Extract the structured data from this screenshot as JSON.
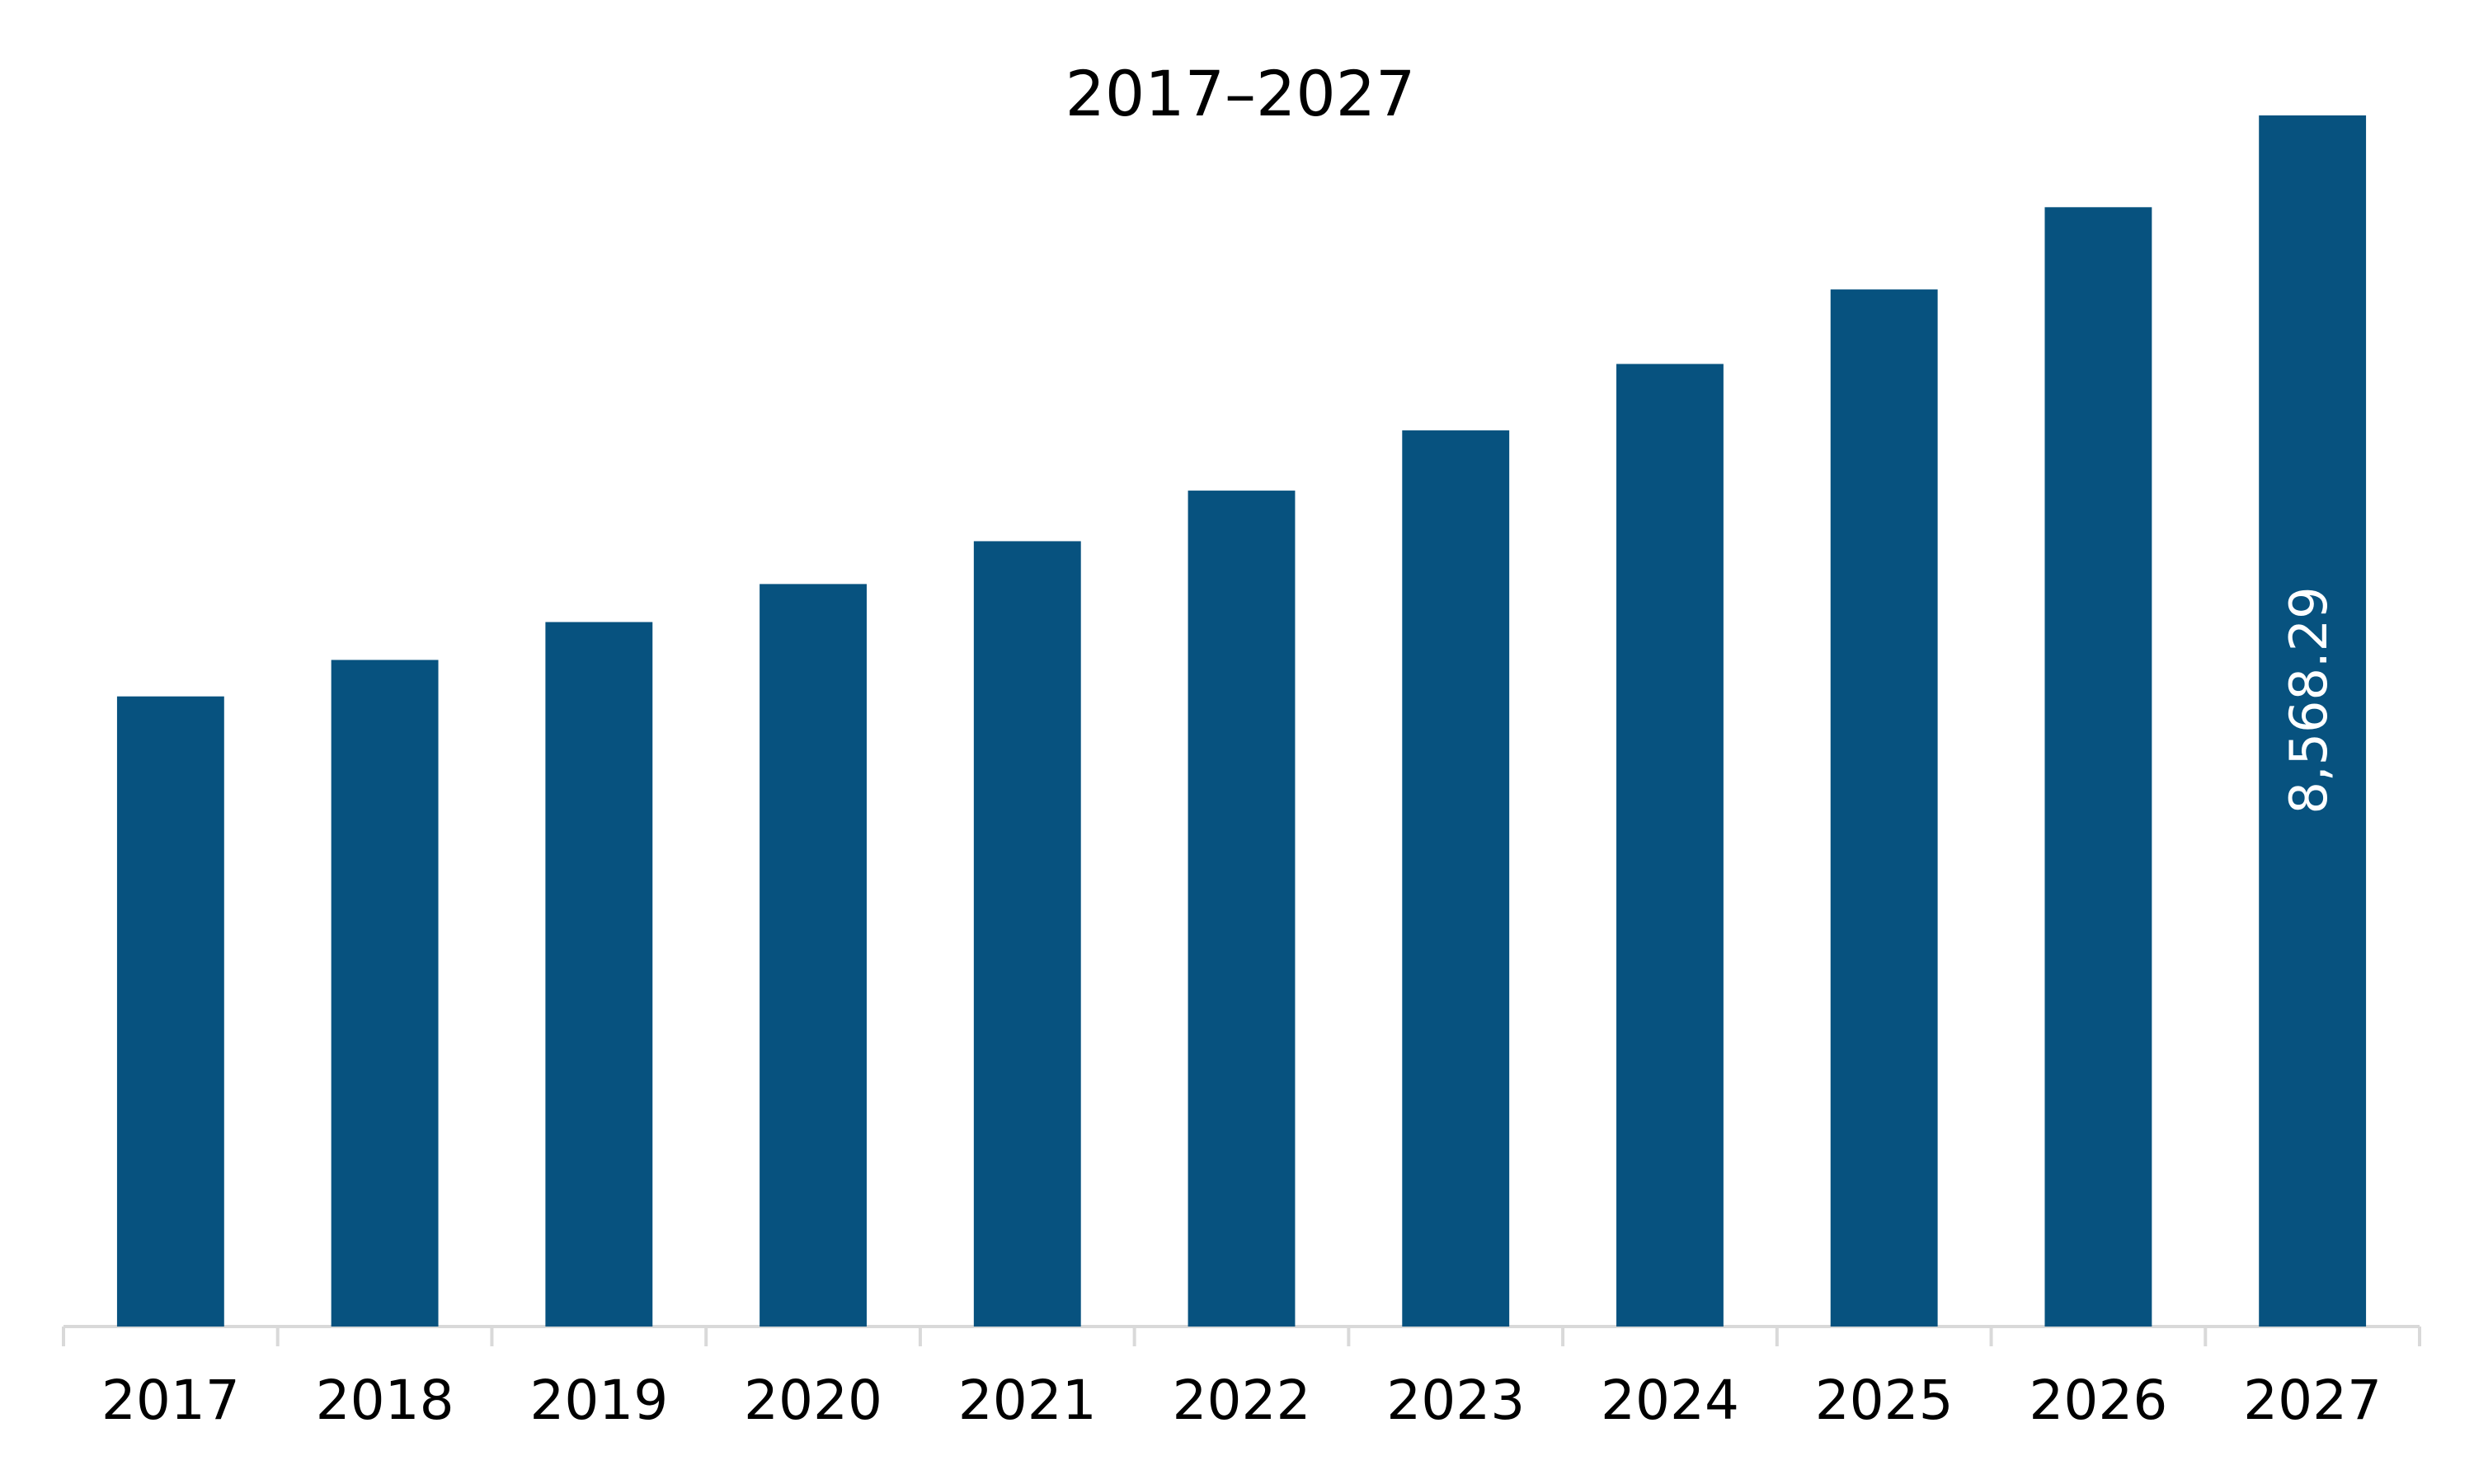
{
  "chart_data": {
    "type": "bar",
    "title": "2017–2027",
    "categories": [
      "2017",
      "2018",
      "2019",
      "2020",
      "2021",
      "2022",
      "2023",
      "2024",
      "2025",
      "2026",
      "2027"
    ],
    "values": [
      4458,
      4716,
      4984,
      5253,
      5556,
      5914,
      6340,
      6810,
      7337,
      7919,
      8568.29
    ],
    "value_labels": [
      null,
      null,
      null,
      null,
      null,
      null,
      null,
      null,
      null,
      null,
      "8,568.29"
    ],
    "color": "#07527f"
  }
}
